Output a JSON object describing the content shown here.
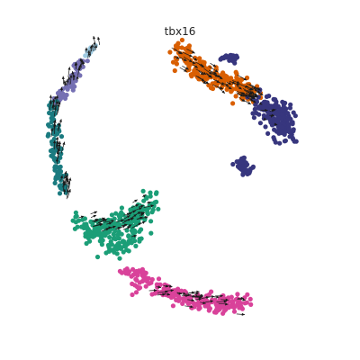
{
  "chart_data": {
    "type": "scatter",
    "title": "tbx16",
    "xlabel": "",
    "ylabel": "",
    "axes_visible": false,
    "grid": false,
    "legend": "none",
    "overlay": "velocity-arrows",
    "arrow_color": "#1a1a1a",
    "series": [
      {
        "color": "#d95f02",
        "clusters": [
          {
            "n": 240,
            "path": [
              [
                -0.05,
                0.93
              ],
              [
                0.05,
                0.84
              ],
              [
                0.15,
                0.76
              ],
              [
                0.28,
                0.72
              ],
              [
                0.4,
                0.68
              ],
              [
                0.47,
                0.6
              ]
            ],
            "sx": 0.07,
            "sy": 0.06,
            "seed": 11
          }
        ]
      },
      {
        "color": "#37367e",
        "clusters": [
          {
            "n": 30,
            "path": [
              [
                0.28,
                0.88
              ],
              [
                0.36,
                0.88
              ]
            ],
            "sx": 0.04,
            "sy": 0.02,
            "seed": 21
          },
          {
            "n": 190,
            "path": [
              [
                0.52,
                0.57
              ],
              [
                0.62,
                0.5
              ],
              [
                0.7,
                0.43
              ],
              [
                0.68,
                0.34
              ]
            ],
            "sx": 0.08,
            "sy": 0.08,
            "seed": 22
          },
          {
            "n": 40,
            "path": [
              [
                0.39,
                0.15
              ],
              [
                0.43,
                0.1
              ]
            ],
            "sx": 0.035,
            "sy": 0.035,
            "seed": 23
          }
        ]
      },
      {
        "color": "#7570b3",
        "clusters": [
          {
            "n": 70,
            "path": [
              [
                -0.72,
                0.85
              ],
              [
                -0.77,
                0.74
              ],
              [
                -0.84,
                0.64
              ],
              [
                -0.9,
                0.58
              ]
            ],
            "sx": 0.035,
            "sy": 0.035,
            "seed": 31
          }
        ]
      },
      {
        "color": "#9ecae1",
        "clusters": [
          {
            "n": 12,
            "path": [
              [
                -0.68,
                0.9
              ],
              [
                -0.62,
                0.96
              ]
            ],
            "sx": 0.02,
            "sy": 0.02,
            "seed": 32
          }
        ]
      },
      {
        "color": "#1b7b80",
        "clusters": [
          {
            "n": 110,
            "path": [
              [
                -0.92,
                0.55
              ],
              [
                -0.9,
                0.35
              ],
              [
                -0.88,
                0.15
              ],
              [
                -0.85,
                -0.05
              ]
            ],
            "sx": 0.035,
            "sy": 0.04,
            "seed": 41
          }
        ]
      },
      {
        "color": "#1b9e77",
        "clusters": [
          {
            "n": 260,
            "path": [
              [
                -0.72,
                -0.25
              ],
              [
                -0.62,
                -0.34
              ],
              [
                -0.5,
                -0.3
              ],
              [
                -0.35,
                -0.2
              ],
              [
                -0.22,
                -0.1
              ],
              [
                -0.4,
                -0.42
              ],
              [
                -0.55,
                -0.45
              ]
            ],
            "sx": 0.08,
            "sy": 0.06,
            "seed": 51
          }
        ]
      },
      {
        "color": "#d9429a",
        "clusters": [
          {
            "n": 230,
            "path": [
              [
                -0.4,
                -0.6
              ],
              [
                -0.25,
                -0.7
              ],
              [
                -0.05,
                -0.77
              ],
              [
                0.12,
                -0.82
              ],
              [
                0.28,
                -0.84
              ],
              [
                0.4,
                -0.8
              ]
            ],
            "sx": 0.07,
            "sy": 0.05,
            "seed": 61
          }
        ]
      }
    ],
    "velocity": [
      {
        "path": [
          [
            -0.05,
            0.93
          ],
          [
            0.15,
            0.76
          ],
          [
            0.4,
            0.68
          ],
          [
            0.47,
            0.6
          ]
        ],
        "n": 70,
        "sx": 0.08,
        "sy": 0.06,
        "dx": 0.05,
        "dy": -0.03,
        "seed": 71
      },
      {
        "path": [
          [
            -0.6,
            0.98
          ],
          [
            -0.72,
            0.82
          ],
          [
            -0.85,
            0.65
          ]
        ],
        "n": 28,
        "sx": 0.03,
        "sy": 0.03,
        "dx": 0.0,
        "dy": 0.05,
        "seed": 72
      },
      {
        "path": [
          [
            -0.92,
            0.55
          ],
          [
            -0.88,
            0.2
          ],
          [
            -0.82,
            -0.1
          ]
        ],
        "n": 40,
        "sx": 0.04,
        "sy": 0.05,
        "dx": 0.01,
        "dy": 0.06,
        "seed": 73
      },
      {
        "path": [
          [
            -0.7,
            -0.25
          ],
          [
            -0.5,
            -0.3
          ],
          [
            -0.25,
            -0.12
          ],
          [
            -0.5,
            -0.45
          ]
        ],
        "n": 45,
        "sx": 0.08,
        "sy": 0.06,
        "dx": 0.05,
        "dy": 0.02,
        "seed": 74
      },
      {
        "path": [
          [
            -0.2,
            -0.72
          ],
          [
            0.1,
            -0.8
          ],
          [
            0.35,
            -0.82
          ]
        ],
        "n": 35,
        "sx": 0.08,
        "sy": 0.05,
        "dx": 0.05,
        "dy": 0.0,
        "seed": 75
      },
      {
        "path": [
          [
            0.55,
            0.53
          ],
          [
            0.65,
            0.45
          ]
        ],
        "n": 8,
        "sx": 0.05,
        "sy": 0.05,
        "dx": 0.03,
        "dy": 0.0,
        "seed": 76
      }
    ]
  }
}
